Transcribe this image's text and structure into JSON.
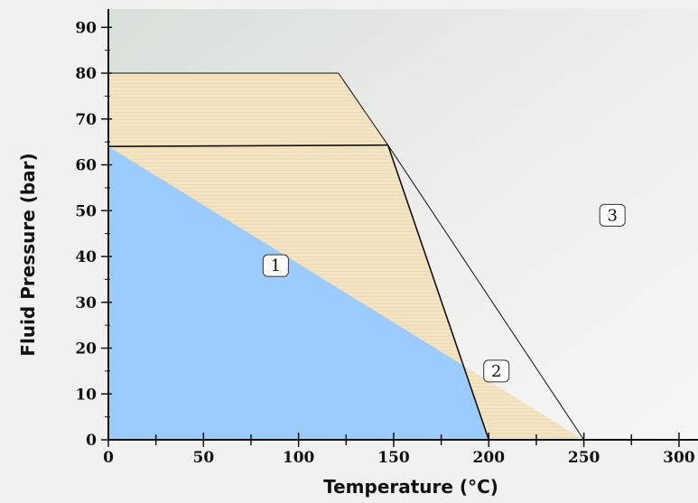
{
  "chart_data": {
    "type": "area",
    "xlabel": "Temperature (°C)",
    "ylabel": "Fluid Pressure (bar)",
    "xlim": [
      0,
      310
    ],
    "ylim": [
      0,
      94
    ],
    "x_ticks": [
      0,
      50,
      100,
      150,
      200,
      250,
      300
    ],
    "y_ticks": [
      0,
      10,
      20,
      30,
      40,
      50,
      60,
      70,
      80,
      90
    ],
    "grid": false,
    "regions": [
      {
        "label": "1",
        "color": "#9ccbff",
        "polygon": [
          [
            0,
            0
          ],
          [
            0,
            64
          ],
          [
            147,
            64.3
          ],
          [
            200,
            0
          ]
        ],
        "label_at": [
          88,
          38
        ]
      },
      {
        "label": "2",
        "color": "#f3e4c2",
        "polygon": [
          [
            0,
            64
          ],
          [
            0,
            80
          ],
          [
            121,
            80
          ],
          [
            147,
            64.3
          ],
          [
            200,
            0
          ],
          [
            250,
            0
          ]
        ],
        "label_at": [
          204,
          15
        ]
      },
      {
        "label": "3",
        "color": "#e4e6e2",
        "polygon": [
          [
            121,
            80
          ],
          [
            250,
            0
          ],
          [
            310,
            0
          ],
          [
            310,
            94
          ],
          [
            0,
            94
          ],
          [
            0,
            80
          ]
        ],
        "label_at": [
          265,
          49
        ]
      }
    ]
  }
}
